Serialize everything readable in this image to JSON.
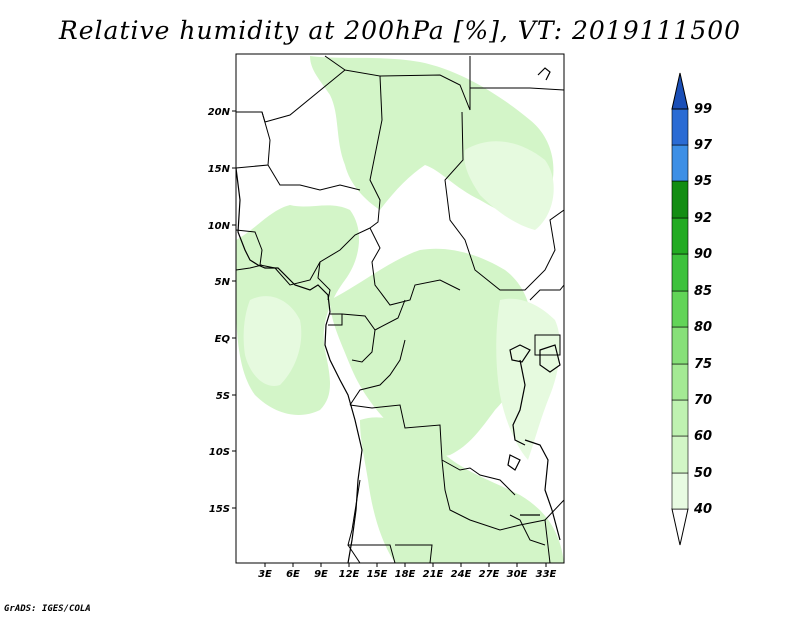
{
  "title": "Relative humidity at 200hPa [%], VT: 2019111500",
  "credit": "GrADS: IGES/COLA",
  "map": {
    "lon_labels": [
      "3E",
      "6E",
      "9E",
      "12E",
      "15E",
      "18E",
      "21E",
      "24E",
      "27E",
      "30E",
      "33E"
    ],
    "lat_labels": [
      "20N",
      "15N",
      "10N",
      "5N",
      "EQ",
      "5S",
      "10S",
      "15S"
    ]
  },
  "colorbar": {
    "labels": [
      "40",
      "50",
      "60",
      "70",
      "75",
      "80",
      "85",
      "90",
      "92",
      "95",
      "97",
      "99"
    ],
    "colors": [
      "#ffffff",
      "#e8fbe2",
      "#d2f6c6",
      "#bff2b1",
      "#a4ea94",
      "#87e079",
      "#62d458",
      "#3dc23c",
      "#22ab22",
      "#138d13",
      "#3d8fe6",
      "#2a6bd4",
      "#1a4fb7"
    ]
  },
  "colors": {
    "light_green": "#d3f5c8",
    "pale_green": "#e6fadf",
    "border": "#000000"
  }
}
